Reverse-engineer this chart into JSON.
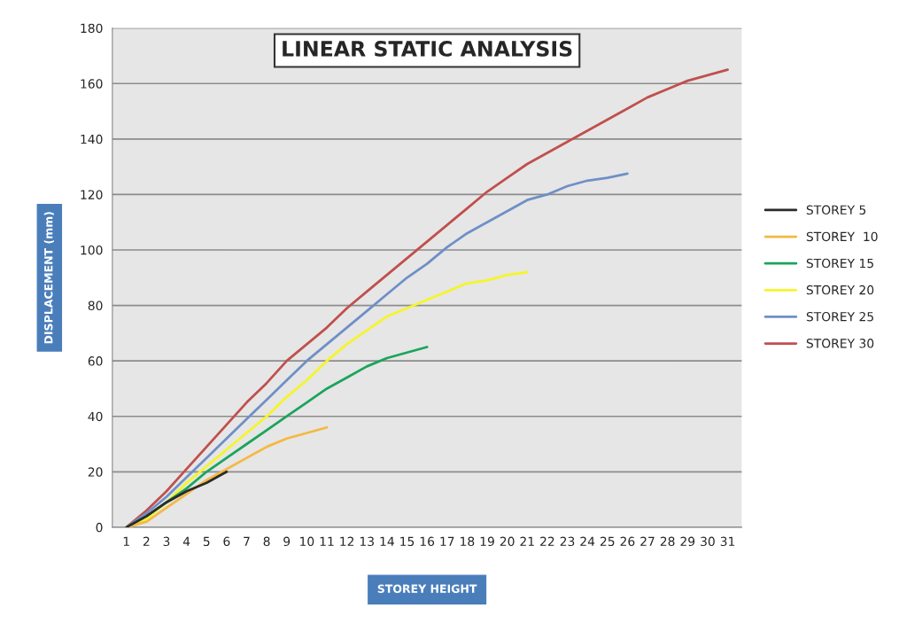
{
  "chart_data": {
    "type": "line",
    "title": "LINEAR STATIC ANALYSIS",
    "xlabel": "STOREY HEIGHT",
    "ylabel": "DISPLACEMENT (mm)",
    "categories": [
      "1",
      "2",
      "3",
      "4",
      "5",
      "6",
      "7",
      "8",
      "9",
      "10",
      "11",
      "12",
      "13",
      "14",
      "15",
      "16",
      "17",
      "18",
      "19",
      "20",
      "21",
      "22",
      "23",
      "24",
      "25",
      "26",
      "27",
      "28",
      "29",
      "30",
      "31"
    ],
    "ylim": [
      0,
      180
    ],
    "yticks": [
      0,
      20,
      40,
      60,
      80,
      100,
      120,
      140,
      160,
      180
    ],
    "grid": "y",
    "legend": "right",
    "marker": "none",
    "line_style": "solid",
    "series": [
      {
        "name": "STOREY 5",
        "color": "#2b2b2b",
        "values": [
          0,
          4,
          9,
          13,
          16,
          20,
          null,
          null,
          null,
          null,
          null,
          null,
          null,
          null,
          null,
          null,
          null,
          null,
          null,
          null,
          null,
          null,
          null,
          null,
          null,
          null,
          null,
          null,
          null,
          null,
          null
        ]
      },
      {
        "name": "STOREY  10",
        "color": "#f4b942",
        "values": [
          0,
          2,
          7,
          12,
          17,
          21,
          25,
          29,
          32,
          34,
          36,
          null,
          null,
          null,
          null,
          null,
          null,
          null,
          null,
          null,
          null,
          null,
          null,
          null,
          null,
          null,
          null,
          null,
          null,
          null,
          null
        ]
      },
      {
        "name": "STOREY 15",
        "color": "#1aa55a",
        "values": [
          0,
          4,
          9,
          14,
          20,
          25,
          30,
          35,
          40,
          45,
          50,
          54,
          58,
          61,
          63,
          65,
          null,
          null,
          null,
          null,
          null,
          null,
          null,
          null,
          null,
          null,
          null,
          null,
          null,
          null,
          null
        ]
      },
      {
        "name": "STOREY 20",
        "color": "#f5f52a",
        "values": [
          0,
          3,
          9,
          16,
          22,
          28,
          34,
          40,
          47,
          53,
          60,
          66,
          71,
          76,
          79,
          82,
          85,
          88,
          89,
          91,
          92,
          null,
          null,
          null,
          null,
          null,
          null,
          null,
          null,
          null,
          null
        ]
      },
      {
        "name": "STOREY 25",
        "color": "#6f8fc7",
        "values": [
          0,
          5,
          11,
          18,
          25,
          32,
          39,
          46,
          53,
          60,
          66,
          72,
          78,
          84,
          90,
          95,
          101,
          106,
          110,
          114,
          118,
          120,
          123,
          125,
          126,
          127.5,
          null,
          null,
          null,
          null,
          null
        ]
      },
      {
        "name": "STOREY 30",
        "color": "#c0504d",
        "values": [
          0,
          6,
          13,
          21,
          29,
          37,
          45,
          52,
          60,
          66,
          72,
          79,
          85,
          91,
          97,
          103,
          109,
          115,
          121,
          126,
          131,
          135,
          139,
          143,
          147,
          151,
          155,
          158,
          161,
          163,
          165
        ]
      }
    ]
  }
}
